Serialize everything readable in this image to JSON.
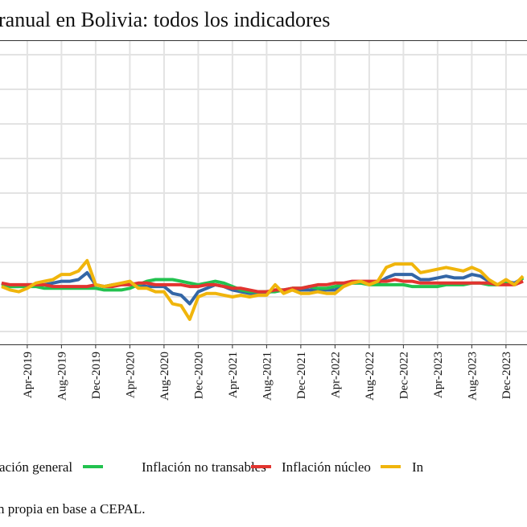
{
  "chart_data": {
    "type": "line",
    "title": "ranual en Bolivia: todos los indicadores",
    "caption": "n propia en base a CEPAL.",
    "xlabel": "",
    "ylabel": "",
    "x_start": "Jan-2019",
    "x_ticks": [
      "Apr-2019",
      "Aug-2019",
      "Dec-2019",
      "Apr-2020",
      "Aug-2020",
      "Dec-2020",
      "Apr-2021",
      "Aug-2021",
      "Dec-2021",
      "Apr-2022",
      "Aug-2022",
      "Dec-2022",
      "Apr-2023",
      "Aug-2023",
      "Dec-2023"
    ],
    "ylim": [
      0,
      16
    ],
    "y_grid_step": 2,
    "grid": true,
    "legend_position": "bottom",
    "series": [
      {
        "name": "ación general",
        "color": "#3366a6",
        "values": [
          2.8,
          2.6,
          2.6,
          2.7,
          2.7,
          2.7,
          2.8,
          2.9,
          2.9,
          3.0,
          3.4,
          2.7,
          2.6,
          2.7,
          2.7,
          2.8,
          2.7,
          2.6,
          2.6,
          2.6,
          2.2,
          2.1,
          1.6,
          2.3,
          2.5,
          2.7,
          2.6,
          2.4,
          2.3,
          2.2,
          2.2,
          2.2,
          2.4,
          2.4,
          2.4,
          2.4,
          2.4,
          2.4,
          2.4,
          2.4,
          2.7,
          2.8,
          2.8,
          2.8,
          2.8,
          3.1,
          3.3,
          3.3,
          3.3,
          3.0,
          3.0,
          3.1,
          3.2,
          3.1,
          3.1,
          3.3,
          3.2,
          2.9,
          2.7,
          2.9,
          2.8,
          3.1
        ]
      },
      {
        "name": "Inflación no transables",
        "color": "#22c24f",
        "values": [
          2.7,
          2.6,
          2.6,
          2.6,
          2.6,
          2.5,
          2.5,
          2.5,
          2.5,
          2.5,
          2.5,
          2.5,
          2.4,
          2.4,
          2.4,
          2.5,
          2.7,
          2.9,
          3.0,
          3.0,
          3.0,
          2.9,
          2.8,
          2.7,
          2.8,
          2.9,
          2.8,
          2.6,
          2.4,
          2.3,
          2.3,
          2.3,
          2.3,
          2.4,
          2.5,
          2.5,
          2.6,
          2.5,
          2.5,
          2.6,
          2.7,
          2.8,
          2.8,
          2.7,
          2.7,
          2.7,
          2.7,
          2.7,
          2.6,
          2.6,
          2.6,
          2.6,
          2.7,
          2.7,
          2.7,
          2.8,
          2.8,
          2.7,
          2.7,
          2.8,
          2.7,
          3.1
        ]
      },
      {
        "name": "Inflación núcleo",
        "color": "#e2342f",
        "values": [
          2.8,
          2.7,
          2.7,
          2.7,
          2.7,
          2.7,
          2.6,
          2.6,
          2.6,
          2.6,
          2.6,
          2.7,
          2.6,
          2.6,
          2.7,
          2.7,
          2.8,
          2.8,
          2.7,
          2.7,
          2.7,
          2.7,
          2.6,
          2.6,
          2.7,
          2.7,
          2.6,
          2.5,
          2.5,
          2.4,
          2.3,
          2.3,
          2.4,
          2.4,
          2.5,
          2.5,
          2.6,
          2.7,
          2.7,
          2.8,
          2.8,
          2.9,
          2.9,
          2.9,
          2.9,
          2.9,
          3.0,
          2.9,
          2.9,
          2.8,
          2.8,
          2.8,
          2.8,
          2.8,
          2.8,
          2.8,
          2.8,
          2.8,
          2.7,
          2.7,
          2.7,
          2.9
        ]
      },
      {
        "name": "In",
        "color": "#f0b50c",
        "values": [
          2.6,
          2.4,
          2.3,
          2.5,
          2.8,
          2.9,
          3.0,
          3.3,
          3.3,
          3.5,
          4.1,
          2.7,
          2.6,
          2.7,
          2.8,
          2.9,
          2.5,
          2.5,
          2.3,
          2.3,
          1.6,
          1.5,
          0.7,
          2.0,
          2.2,
          2.2,
          2.1,
          2.0,
          2.1,
          2.0,
          2.1,
          2.1,
          2.7,
          2.2,
          2.4,
          2.2,
          2.2,
          2.3,
          2.2,
          2.2,
          2.6,
          2.8,
          2.9,
          2.7,
          2.9,
          3.7,
          3.9,
          3.9,
          3.9,
          3.4,
          3.5,
          3.6,
          3.7,
          3.6,
          3.5,
          3.7,
          3.5,
          3.0,
          2.7,
          3.0,
          2.7,
          3.2
        ]
      }
    ]
  }
}
